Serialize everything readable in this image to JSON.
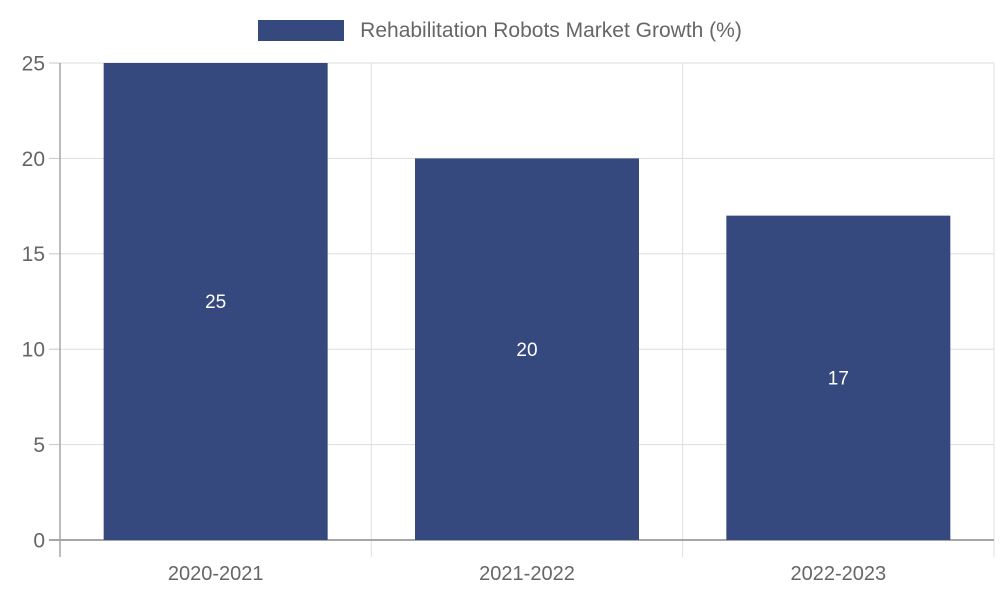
{
  "chart_data": {
    "type": "bar",
    "title": "Rehabilitation Robots Market Growth (%)",
    "legend": {
      "label": "Rehabilitation Robots Market Growth (%)",
      "position": "top-center"
    },
    "categories": [
      "2020-2021",
      "2021-2022",
      "2022-2023"
    ],
    "values": [
      25,
      20,
      17
    ],
    "bar_value_labels": [
      "25",
      "20",
      "17"
    ],
    "xlabel": "",
    "ylabel": "",
    "ylim": [
      0,
      25
    ],
    "yticks": [
      0,
      5,
      10,
      15,
      20,
      25
    ],
    "grid": true,
    "colors": {
      "bar": "#36497E",
      "bar_value_text": "#FFFFFF",
      "axis_text": "#666666",
      "legend_text": "#666666",
      "gridline": "#DDDDDD",
      "category_separator": "#E0E0E0",
      "tick": "#C8C8C8",
      "axis_line": "#A6A6A6",
      "background": "#FFFFFF"
    }
  }
}
